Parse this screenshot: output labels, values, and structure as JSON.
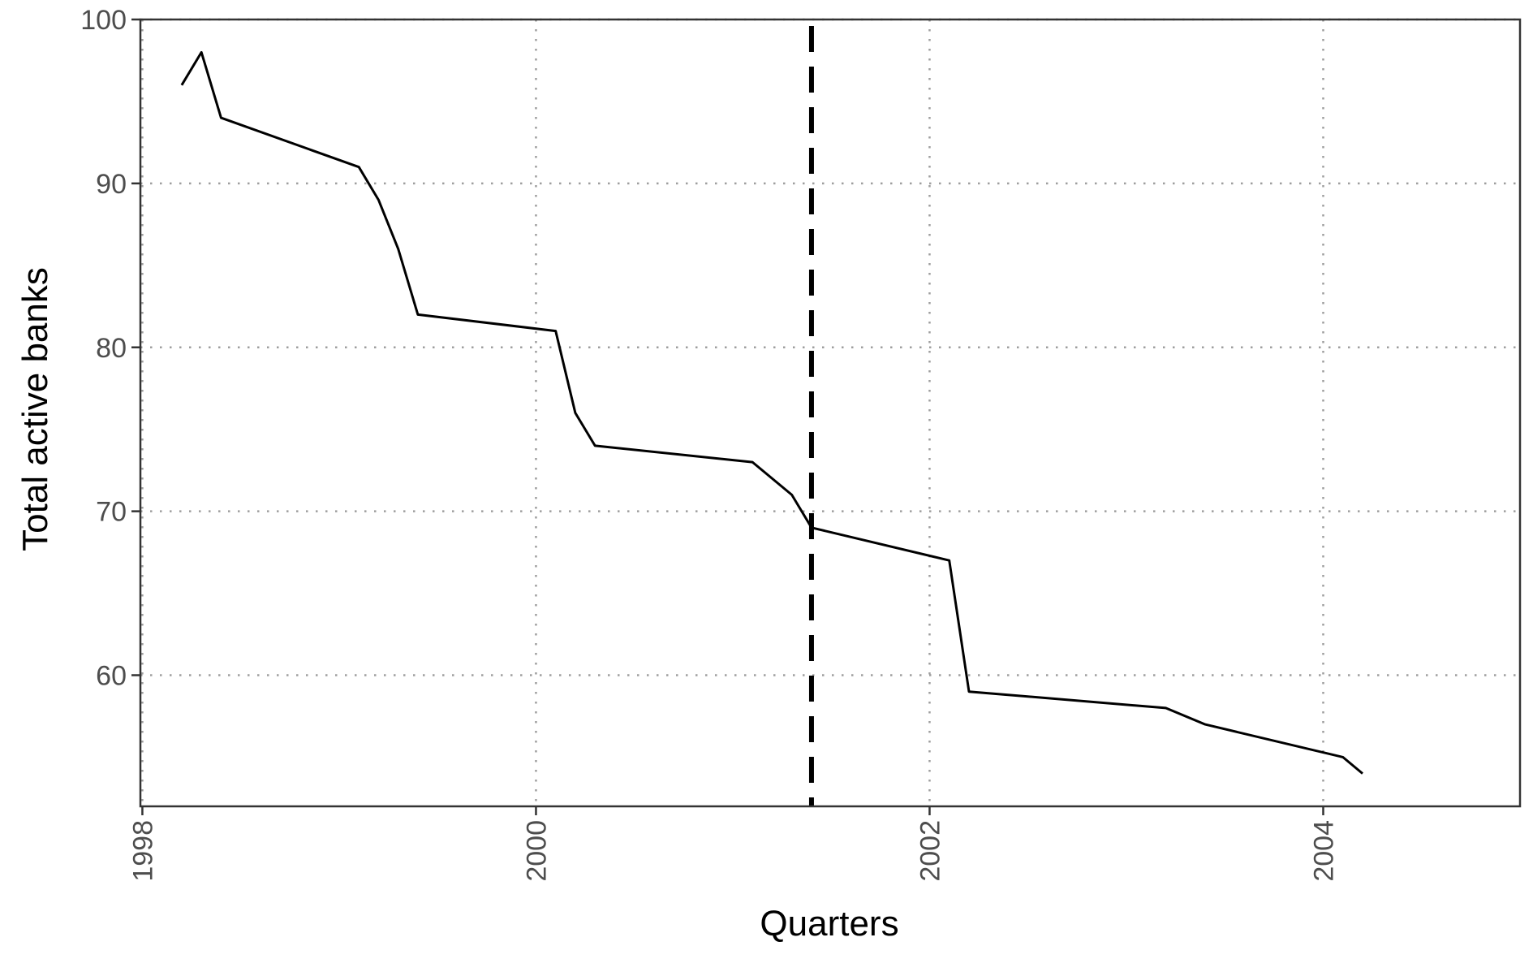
{
  "chart_data": {
    "type": "line",
    "title": "",
    "xlabel": "Quarters",
    "ylabel": "Total active banks",
    "xlim": [
      1997.99,
      2005.0
    ],
    "ylim": [
      52,
      100
    ],
    "x_ticks": [
      1998,
      2000,
      2002,
      2004
    ],
    "x_tick_labels": [
      "1998",
      "2000",
      "2002",
      "2004"
    ],
    "y_ticks": [
      60,
      70,
      80,
      90,
      100
    ],
    "y_tick_labels": [
      "60",
      "70",
      "80",
      "90",
      "100"
    ],
    "grid": true,
    "grid_style": "dotted",
    "line_color": "#000000",
    "vline": {
      "x": 2001.4,
      "style": "dashed",
      "color": "#000000"
    },
    "series": [
      {
        "x": [
          1998.2,
          1998.3,
          1998.4,
          1999.1,
          1999.2,
          1999.3,
          1999.4,
          2000.1,
          2000.2,
          2000.3,
          2001.1,
          2001.3,
          2001.4,
          2002.1,
          2002.2,
          2003.2,
          2003.4,
          2004.1,
          2004.2
        ],
        "values": [
          96,
          98,
          94,
          91,
          89,
          86,
          82,
          81,
          76,
          74,
          73,
          71,
          69,
          67,
          59,
          58,
          57,
          55,
          54
        ]
      }
    ]
  }
}
